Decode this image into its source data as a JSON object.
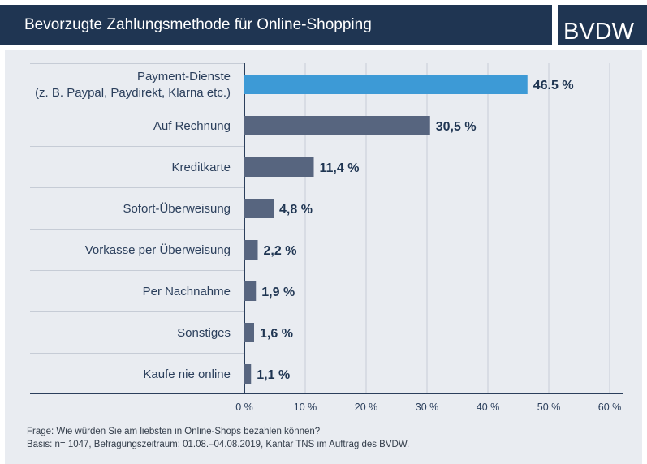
{
  "header": {
    "title": "Bevorzugte Zahlungsmethode für Online-Shopping",
    "logo": "BVDW"
  },
  "chart_data": {
    "type": "bar",
    "orientation": "horizontal",
    "title": "Bevorzugte Zahlungsmethode für Online-Shopping",
    "categories": [
      [
        "Payment-Dienste",
        "(z. B. Paypal, Paydirekt, Klarna etc.)"
      ],
      [
        "Auf Rechnung"
      ],
      [
        "Kreditkarte"
      ],
      [
        "Sofort-Überweisung"
      ],
      [
        "Vorkasse per Überweisung"
      ],
      [
        "Per Nachnahme"
      ],
      [
        "Sonstiges"
      ],
      [
        "Kaufe nie online"
      ]
    ],
    "values": [
      46.5,
      30.5,
      11.4,
      4.8,
      2.2,
      1.9,
      1.6,
      1.1
    ],
    "value_labels": [
      "46.5 %",
      "30,5 %",
      "11,4 %",
      "4,8 %",
      "2,2 %",
      "1,9 %",
      "1,6 %",
      "1,1 %"
    ],
    "xlim": [
      0,
      60
    ],
    "xticks": [
      0,
      10,
      20,
      30,
      40,
      50,
      60
    ],
    "xtick_labels": [
      "0 %",
      "10 %",
      "20 %",
      "30 %",
      "40 %",
      "50 %",
      "60 %"
    ],
    "grid": true,
    "colors": {
      "highlight": "#3d9ad6",
      "bar": "#57657f",
      "grid": "#c6ccd6",
      "axis": "#2b3f5c",
      "label": "#2b3f5c",
      "value_label": "#1f3552"
    }
  },
  "footnote": {
    "line1": "Frage: Wie würden Sie am liebsten in Online-Shops bezahlen können?",
    "line2": "Basis: n= 1047, Befragungszeitraum: 01.08.–04.08.2019, Kantar TNS im Auftrag des BVDW."
  }
}
